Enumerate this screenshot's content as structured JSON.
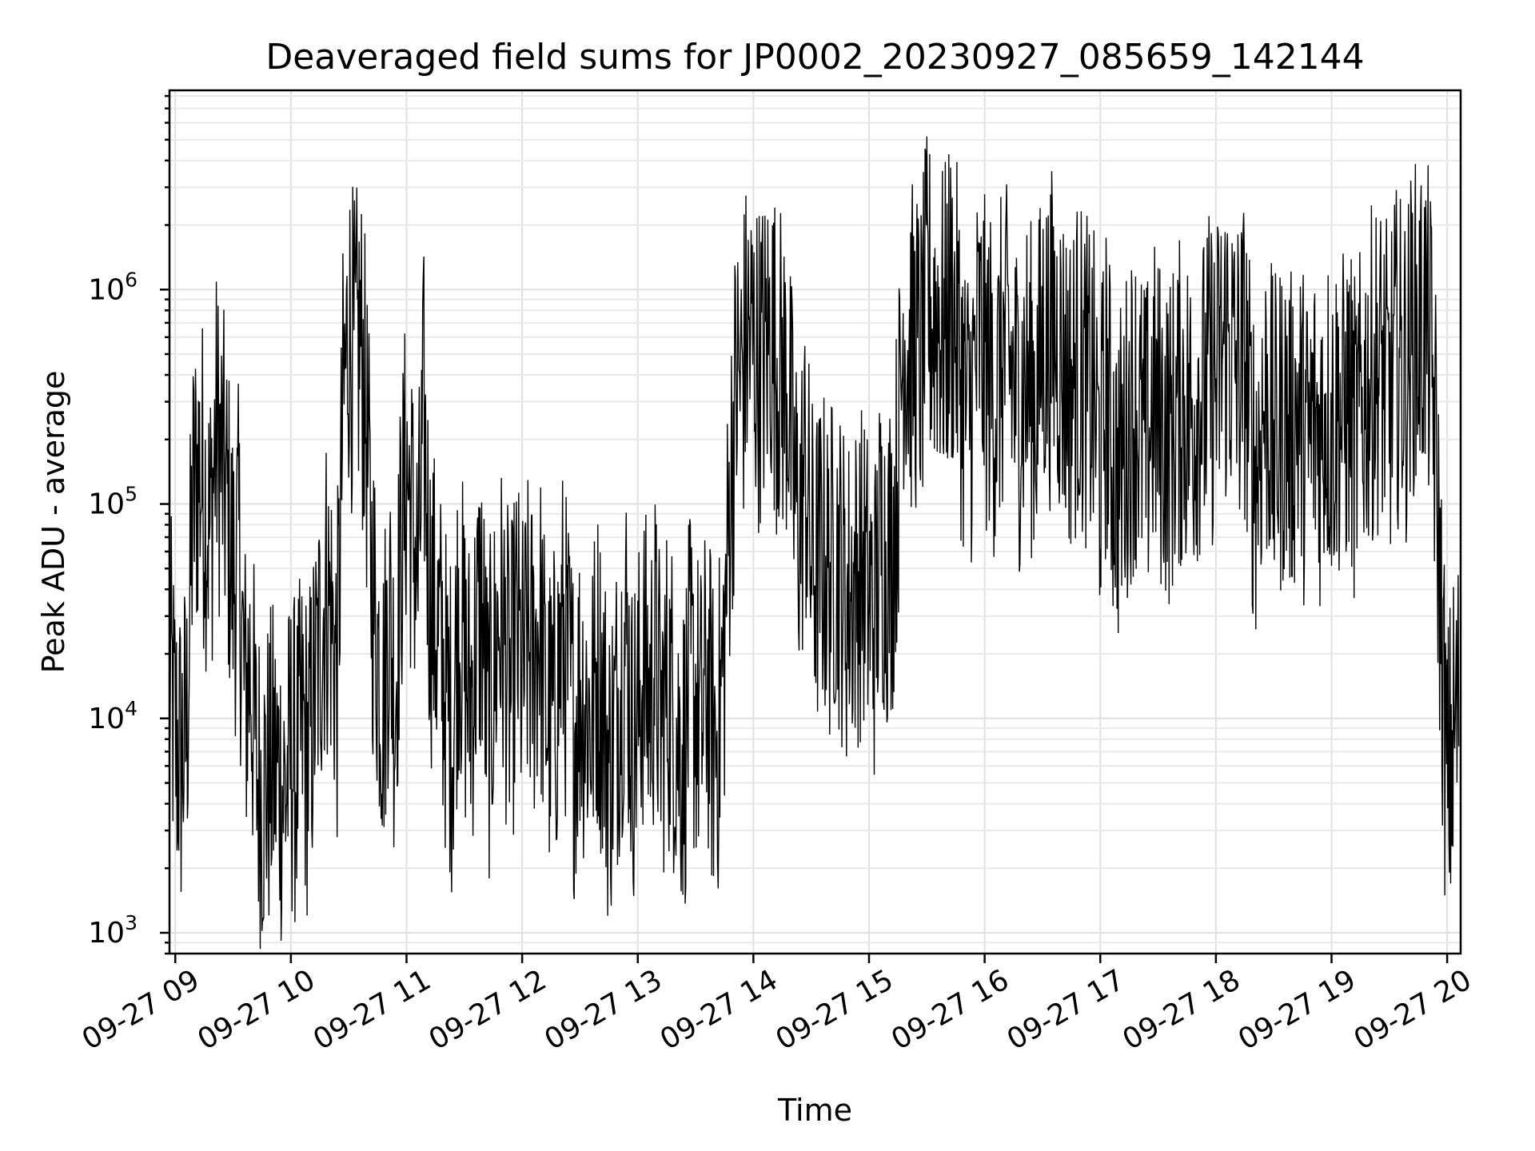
{
  "chart_data": {
    "type": "line",
    "title": "Deaveraged field sums for JP0002_20230927_085659_142144",
    "xlabel": "Time",
    "ylabel": "Peak ADU - average",
    "y_scale": "log",
    "ylim": [
      800,
      8500000
    ],
    "xlim": [
      "09-27 08:57",
      "09-27 20:07"
    ],
    "x_ticks": [
      "09-27 09",
      "09-27 10",
      "09-27 11",
      "09-27 12",
      "09-27 13",
      "09-27 14",
      "09-27 15",
      "09-27 16",
      "09-27 17",
      "09-27 18",
      "09-27 19",
      "09-27 20"
    ],
    "y_ticks": [
      {
        "value": 1000,
        "base": "10",
        "exp": "3"
      },
      {
        "value": 10000,
        "base": "10",
        "exp": "4"
      },
      {
        "value": 100000,
        "base": "10",
        "exp": "5"
      },
      {
        "value": 1000000,
        "base": "10",
        "exp": "6"
      }
    ],
    "grid": true,
    "series": [
      {
        "color": "#000000",
        "x": [
          "09-27 08:57",
          "09-27 09:00",
          "09-27 09:03",
          "09-27 09:06",
          "09-27 09:09",
          "09-27 09:12",
          "09-27 09:15",
          "09-27 09:18",
          "09-27 09:21",
          "09-27 09:24",
          "09-27 09:27",
          "09-27 09:30",
          "09-27 09:33",
          "09-27 09:36",
          "09-27 09:39",
          "09-27 09:42",
          "09-27 09:45",
          "09-27 09:48",
          "09-27 09:51",
          "09-27 09:54",
          "09-27 09:57",
          "09-27 10:00",
          "09-27 10:03",
          "09-27 10:06",
          "09-27 10:09",
          "09-27 10:12",
          "09-27 10:15",
          "09-27 10:18",
          "09-27 10:21",
          "09-27 10:24",
          "09-27 10:27",
          "09-27 10:30",
          "09-27 10:33",
          "09-27 10:36",
          "09-27 10:39",
          "09-27 10:42",
          "09-27 10:45",
          "09-27 10:48",
          "09-27 10:51",
          "09-27 10:54",
          "09-27 10:57",
          "09-27 11:00",
          "09-27 11:03",
          "09-27 11:06",
          "09-27 11:09",
          "09-27 11:12",
          "09-27 11:15",
          "09-27 11:18",
          "09-27 11:21",
          "09-27 11:24",
          "09-27 11:27",
          "09-27 11:30",
          "09-27 11:33",
          "09-27 11:36",
          "09-27 11:39",
          "09-27 11:42",
          "09-27 11:45",
          "09-27 11:48",
          "09-27 11:51",
          "09-27 11:54",
          "09-27 11:57",
          "09-27 12:00",
          "09-27 12:03",
          "09-27 12:06",
          "09-27 12:09",
          "09-27 12:12",
          "09-27 12:15",
          "09-27 12:18",
          "09-27 12:21",
          "09-27 12:24",
          "09-27 12:27",
          "09-27 12:30",
          "09-27 12:33",
          "09-27 12:36",
          "09-27 12:39",
          "09-27 12:42",
          "09-27 12:45",
          "09-27 12:48",
          "09-27 12:51",
          "09-27 12:54",
          "09-27 12:57",
          "09-27 13:00",
          "09-27 13:03",
          "09-27 13:06",
          "09-27 13:09",
          "09-27 13:12",
          "09-27 13:15",
          "09-27 13:18",
          "09-27 13:21",
          "09-27 13:24",
          "09-27 13:27",
          "09-27 13:30",
          "09-27 13:33",
          "09-27 13:36",
          "09-27 13:39",
          "09-27 13:42",
          "09-27 13:45",
          "09-27 13:48",
          "09-27 13:51",
          "09-27 13:54",
          "09-27 13:57",
          "09-27 14:00",
          "09-27 14:03",
          "09-27 14:06",
          "09-27 14:09",
          "09-27 14:12",
          "09-27 14:15",
          "09-27 14:18",
          "09-27 14:21",
          "09-27 14:24",
          "09-27 14:27",
          "09-27 14:30",
          "09-27 14:33",
          "09-27 14:36",
          "09-27 14:39",
          "09-27 14:42",
          "09-27 14:45",
          "09-27 14:48",
          "09-27 14:51",
          "09-27 14:54",
          "09-27 14:57",
          "09-27 15:00",
          "09-27 15:03",
          "09-27 15:06",
          "09-27 15:09",
          "09-27 15:12",
          "09-27 15:15",
          "09-27 15:18",
          "09-27 15:21",
          "09-27 15:24",
          "09-27 15:27",
          "09-27 15:30",
          "09-27 15:33",
          "09-27 15:36",
          "09-27 15:39",
          "09-27 15:42",
          "09-27 15:45",
          "09-27 15:48",
          "09-27 15:51",
          "09-27 15:54",
          "09-27 15:57",
          "09-27 16:00",
          "09-27 16:03",
          "09-27 16:06",
          "09-27 16:09",
          "09-27 16:12",
          "09-27 16:15",
          "09-27 16:18",
          "09-27 16:21",
          "09-27 16:24",
          "09-27 16:27",
          "09-27 16:30",
          "09-27 16:33",
          "09-27 16:36",
          "09-27 16:39",
          "09-27 16:42",
          "09-27 16:45",
          "09-27 16:48",
          "09-27 16:51",
          "09-27 16:54",
          "09-27 16:57",
          "09-27 17:00",
          "09-27 17:03",
          "09-27 17:06",
          "09-27 17:09",
          "09-27 17:12",
          "09-27 17:15",
          "09-27 17:18",
          "09-27 17:21",
          "09-27 17:24",
          "09-27 17:27",
          "09-27 17:30",
          "09-27 17:33",
          "09-27 17:36",
          "09-27 17:39",
          "09-27 17:42",
          "09-27 17:45",
          "09-27 17:48",
          "09-27 17:51",
          "09-27 17:54",
          "09-27 17:57",
          "09-27 18:00",
          "09-27 18:03",
          "09-27 18:06",
          "09-27 18:09",
          "09-27 18:12",
          "09-27 18:15",
          "09-27 18:18",
          "09-27 18:21",
          "09-27 18:24",
          "09-27 18:27",
          "09-27 18:30",
          "09-27 18:33",
          "09-27 18:36",
          "09-27 18:39",
          "09-27 18:42",
          "09-27 18:45",
          "09-27 18:48",
          "09-27 18:51",
          "09-27 18:54",
          "09-27 18:57",
          "09-27 19:00",
          "09-27 19:03",
          "09-27 19:06",
          "09-27 19:09",
          "09-27 19:12",
          "09-27 19:15",
          "09-27 19:18",
          "09-27 19:21",
          "09-27 19:24",
          "09-27 19:27",
          "09-27 19:30",
          "09-27 19:33",
          "09-27 19:36",
          "09-27 19:39",
          "09-27 19:42",
          "09-27 19:45",
          "09-27 19:48",
          "09-27 19:51",
          "09-27 19:54",
          "09-27 19:57",
          "09-27 20:00",
          "09-27 20:03",
          "09-27 20:06"
        ],
        "y": [
          18000,
          8000,
          6500,
          9000,
          95000,
          150000,
          120000,
          70000,
          210000,
          160000,
          95000,
          45000,
          60000,
          12000,
          18000,
          6000,
          4500,
          5200,
          6000,
          5500,
          4500,
          7000,
          6000,
          9000,
          6500,
          12000,
          22000,
          40000,
          30000,
          15000,
          260000,
          700000,
          450000,
          600000,
          250000,
          45000,
          22000,
          12000,
          35000,
          12000,
          60000,
          150000,
          80000,
          45000,
          260000,
          40000,
          28000,
          20000,
          12000,
          9000,
          35000,
          18000,
          12000,
          22000,
          35000,
          9000,
          15000,
          30000,
          22000,
          12000,
          25000,
          15000,
          22000,
          18000,
          30000,
          12000,
          9000,
          13000,
          25000,
          16000,
          9000,
          14000,
          12000,
          10000,
          18000,
          12000,
          6000,
          9000,
          15000,
          25000,
          8000,
          10000,
          18000,
          12000,
          20000,
          9000,
          14000,
          12000,
          8000,
          7000,
          15000,
          12000,
          9000,
          15000,
          8000,
          9000,
          22000,
          120000,
          350000,
          400000,
          600000,
          550000,
          450000,
          500000,
          650000,
          450000,
          400000,
          350000,
          120000,
          80000,
          150000,
          55000,
          50000,
          60000,
          45000,
          60000,
          50000,
          35000,
          40000,
          45000,
          50000,
          35000,
          30000,
          70000,
          55000,
          60000,
          150000,
          700000,
          500000,
          550000,
          450000,
          900000,
          750000,
          800000,
          600000,
          900000,
          700000,
          400000,
          250000,
          350000,
          600000,
          450000,
          400000,
          300000,
          500000,
          500000,
          350000,
          300000,
          400000,
          350000,
          300000,
          600000,
          550000,
          650000,
          500000,
          400000,
          350000,
          450000,
          400000,
          350000,
          300000,
          150000,
          350000,
          180000,
          130000,
          170000,
          250000,
          300000,
          220000,
          180000,
          300000,
          250000,
          220000,
          200000,
          250000,
          300000,
          280000,
          250000,
          350000,
          300000,
          400000,
          350000,
          500000,
          600000,
          450000,
          400000,
          500000,
          200000,
          150000,
          250000,
          300000,
          180000,
          220000,
          250000,
          200000,
          280000,
          220000,
          180000,
          250000,
          200000,
          300000,
          220000,
          280000,
          250000,
          300000,
          200000,
          250000,
          350000,
          400000,
          450000,
          400000,
          300000,
          500000,
          450000,
          400000,
          700000,
          600000,
          750000,
          550000,
          180000,
          25000,
          4500,
          8000,
          12000
        ]
      }
    ]
  }
}
